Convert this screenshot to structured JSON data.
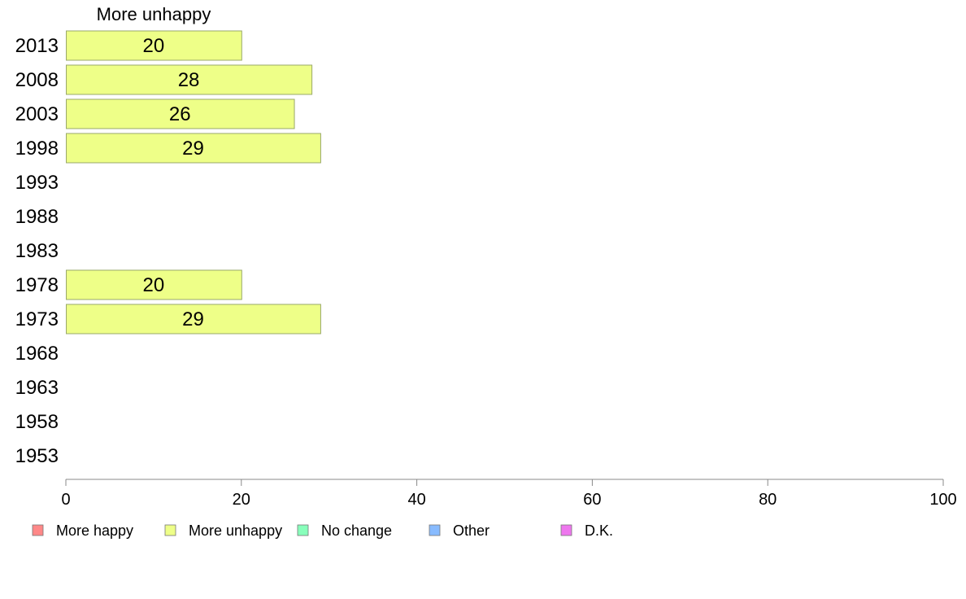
{
  "chart_data": {
    "type": "bar",
    "orientation": "horizontal",
    "title": "More unhappy",
    "categories": [
      "2013",
      "2008",
      "2003",
      "1998",
      "1993",
      "1988",
      "1983",
      "1978",
      "1973",
      "1968",
      "1963",
      "1958",
      "1953"
    ],
    "series": [
      {
        "name": "More unhappy",
        "color": "#EEFF88",
        "values": [
          20,
          28,
          26,
          29,
          null,
          null,
          null,
          20,
          29,
          null,
          null,
          null,
          null
        ]
      }
    ],
    "xlim": [
      0,
      100
    ],
    "xticks": [
      0,
      20,
      40,
      60,
      80,
      100
    ],
    "grid": false,
    "legend": {
      "placement": "bottom",
      "items": [
        {
          "label": "More happy",
          "color": "#FF8888"
        },
        {
          "label": "More unhappy",
          "color": "#EEFF88"
        },
        {
          "label": "No change",
          "color": "#88FFBB"
        },
        {
          "label": "Other",
          "color": "#88BBFF"
        },
        {
          "label": "D.K.",
          "color": "#EE77EE"
        }
      ]
    }
  }
}
